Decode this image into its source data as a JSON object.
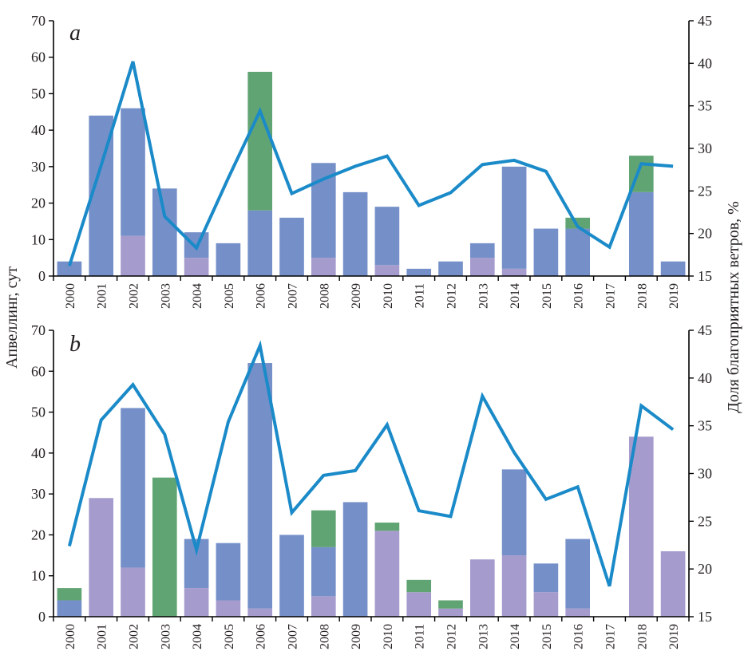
{
  "figure": {
    "left_axis_title": "Апвеллинг, сут",
    "right_axis_title": "Доля благоприятных ветров, %"
  },
  "colors": {
    "blue": "#7590c9",
    "green": "#60a473",
    "purple": "#a69bcd",
    "line": "#1a8ac8"
  },
  "chart_data": [
    {
      "type": "bar",
      "panel_label": "a",
      "stacked": true,
      "categories": [
        "2000",
        "2001",
        "2002",
        "2003",
        "2004",
        "2005",
        "2006",
        "2007",
        "2008",
        "2009",
        "2010",
        "2011",
        "2012",
        "2013",
        "2014",
        "2015",
        "2016",
        "2017",
        "2018",
        "2019"
      ],
      "ylabel": "Апвеллинг, сут",
      "ylim": [
        0,
        70
      ],
      "yticks": [
        0,
        10,
        20,
        30,
        40,
        50,
        60,
        70
      ],
      "y2label": "Доля благоприятных ветров, %",
      "y2lim": [
        15,
        45
      ],
      "y2ticks": [
        15,
        20,
        25,
        30,
        35,
        40,
        45
      ],
      "grid": false,
      "series": [
        {
          "name": "purple",
          "color_key": "purple",
          "values": [
            0,
            0,
            11,
            0,
            5,
            0,
            0,
            0,
            5,
            0,
            3,
            0,
            0,
            5,
            2,
            0,
            0,
            0,
            0,
            0
          ]
        },
        {
          "name": "blue",
          "color_key": "blue",
          "values": [
            4,
            44,
            35,
            24,
            7,
            9,
            18,
            16,
            26,
            23,
            16,
            2,
            4,
            4,
            28,
            13,
            13,
            0,
            23,
            4
          ]
        },
        {
          "name": "green",
          "color_key": "green",
          "values": [
            0,
            0,
            0,
            0,
            0,
            0,
            38,
            0,
            0,
            0,
            0,
            0,
            0,
            0,
            0,
            0,
            3,
            0,
            10,
            0
          ]
        }
      ],
      "totals": [
        4,
        44,
        46,
        24,
        12,
        9,
        56,
        16,
        31,
        23,
        19,
        2,
        4,
        9,
        30,
        13,
        16,
        0,
        33,
        4
      ],
      "line_series": {
        "name": "Доля благоприятных ветров, %",
        "axis": "right",
        "color_key": "line",
        "values": [
          16.2,
          28.0,
          40.2,
          22.0,
          18.3,
          26.5,
          34.4,
          24.7,
          26.4,
          27.9,
          29.1,
          23.3,
          24.8,
          28.1,
          28.6,
          27.3,
          20.8,
          18.4,
          28.2,
          27.9
        ]
      }
    },
    {
      "type": "bar",
      "panel_label": "b",
      "stacked": true,
      "categories": [
        "2000",
        "2001",
        "2002",
        "2003",
        "2004",
        "2005",
        "2006",
        "2007",
        "2008",
        "2009",
        "2010",
        "2011",
        "2012",
        "2013",
        "2014",
        "2015",
        "2016",
        "2017",
        "2018",
        "2019"
      ],
      "ylabel": "Апвеллинг, сут",
      "ylim": [
        0,
        70
      ],
      "yticks": [
        0,
        10,
        20,
        30,
        40,
        50,
        60,
        70
      ],
      "y2label": "Доля благоприятных ветров, %",
      "y2lim": [
        15,
        45
      ],
      "y2ticks": [
        15,
        20,
        25,
        30,
        35,
        40,
        45
      ],
      "grid": false,
      "series": [
        {
          "name": "purple",
          "color_key": "purple",
          "values": [
            0,
            29,
            12,
            0,
            7,
            4,
            2,
            0,
            5,
            0,
            21,
            6,
            2,
            14,
            15,
            6,
            2,
            0,
            44,
            16
          ]
        },
        {
          "name": "blue",
          "color_key": "blue",
          "values": [
            4,
            0,
            39,
            0,
            12,
            14,
            60,
            20,
            12,
            28,
            0,
            0,
            0,
            0,
            21,
            7,
            17,
            0,
            0,
            0
          ]
        },
        {
          "name": "green",
          "color_key": "green",
          "values": [
            3,
            0,
            0,
            34,
            0,
            0,
            0,
            0,
            9,
            0,
            2,
            3,
            2,
            0,
            0,
            0,
            0,
            0,
            0,
            0
          ]
        }
      ],
      "totals": [
        7,
        29,
        51,
        34,
        19,
        18,
        62,
        20,
        26,
        28,
        23,
        9,
        4,
        14,
        36,
        13,
        19,
        0,
        44,
        16
      ],
      "line_series": {
        "name": "Доля благоприятных ветров, %",
        "axis": "right",
        "color_key": "line",
        "values": [
          22.4,
          35.6,
          39.3,
          34.1,
          22.0,
          35.4,
          43.4,
          25.9,
          29.8,
          30.3,
          35.1,
          26.1,
          25.5,
          38.1,
          32.2,
          27.3,
          28.6,
          18.2,
          37.1,
          34.6
        ]
      }
    }
  ]
}
